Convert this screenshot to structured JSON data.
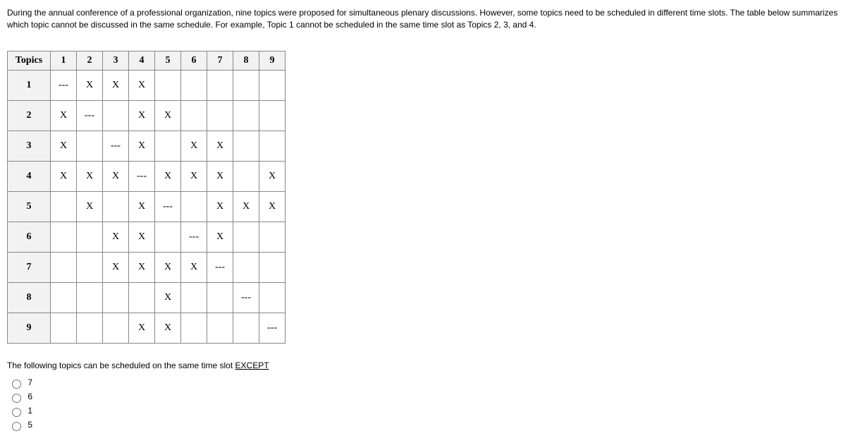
{
  "intro": "During the annual conference of a professional organization, nine topics were proposed for simultaneous plenary discussions. However, some topics need to be scheduled in different time slots. The table below summarizes which topic cannot be discussed in the same schedule. For example, Topic 1 cannot be scheduled in the same time slot as Topics 2, 3, and 4.",
  "table": {
    "corner": "Topics",
    "columns": [
      "1",
      "2",
      "3",
      "4",
      "5",
      "6",
      "7",
      "8",
      "9"
    ],
    "rows": [
      {
        "label": "1",
        "cells": [
          "---",
          "X",
          "X",
          "X",
          "",
          "",
          "",
          "",
          ""
        ]
      },
      {
        "label": "2",
        "cells": [
          "X",
          "---",
          "",
          "X",
          "X",
          "",
          "",
          "",
          ""
        ]
      },
      {
        "label": "3",
        "cells": [
          "X",
          "",
          "---",
          "X",
          "",
          "X",
          "X",
          "",
          ""
        ]
      },
      {
        "label": "4",
        "cells": [
          "X",
          "X",
          "X",
          "---",
          "X",
          "X",
          "X",
          "",
          "X"
        ]
      },
      {
        "label": "5",
        "cells": [
          "",
          "X",
          "",
          "X",
          "---",
          "",
          "X",
          "X",
          "X"
        ]
      },
      {
        "label": "6",
        "cells": [
          "",
          "",
          "X",
          "X",
          "",
          "---",
          "X",
          "",
          ""
        ]
      },
      {
        "label": "7",
        "cells": [
          "",
          "",
          "X",
          "X",
          "X",
          "X",
          "---",
          "",
          ""
        ]
      },
      {
        "label": "8",
        "cells": [
          "",
          "",
          "",
          "",
          "X",
          "",
          "",
          "---",
          ""
        ]
      },
      {
        "label": "9",
        "cells": [
          "",
          "",
          "",
          "X",
          "X",
          "",
          "",
          "",
          "---"
        ]
      }
    ]
  },
  "question": {
    "stem": "The following topics can be scheduled on the same time slot ",
    "except": "EXCEPT"
  },
  "options": [
    {
      "label": "7"
    },
    {
      "label": "6"
    },
    {
      "label": "1"
    },
    {
      "label": "5"
    }
  ]
}
